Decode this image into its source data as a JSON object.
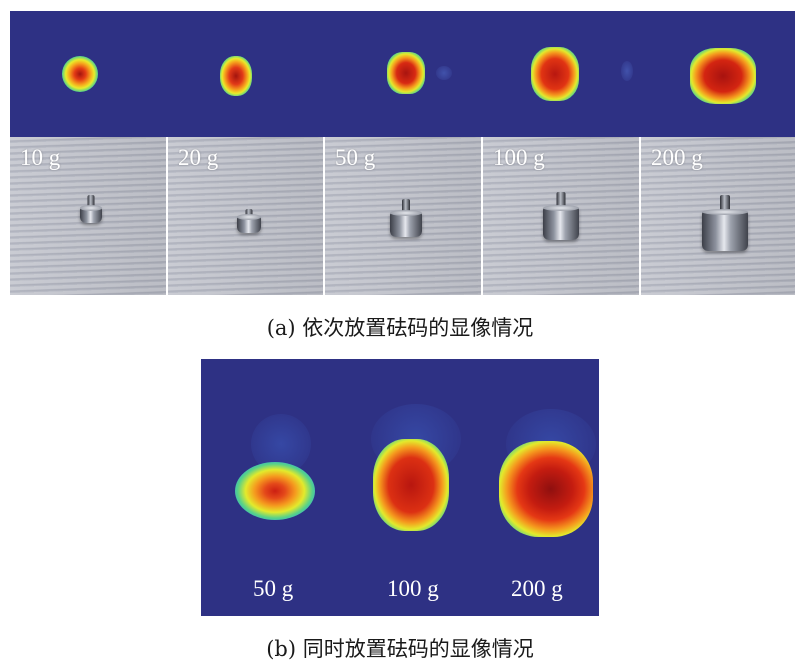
{
  "panel_a": {
    "weights": [
      {
        "label": "10 g"
      },
      {
        "label": "20 g"
      },
      {
        "label": "50 g"
      },
      {
        "label": "100 g"
      },
      {
        "label": "200 g"
      }
    ],
    "caption": "(a)  依次放置砝码的显像情况"
  },
  "panel_b": {
    "weights": [
      {
        "label": "50 g"
      },
      {
        "label": "100 g"
      },
      {
        "label": "200 g"
      }
    ],
    "caption": "(b)  同时放置砝码的显像情况"
  },
  "colors": {
    "background": "#2e3184",
    "heatmap_low": "#2e3184",
    "heatmap_high": "#b01010"
  }
}
